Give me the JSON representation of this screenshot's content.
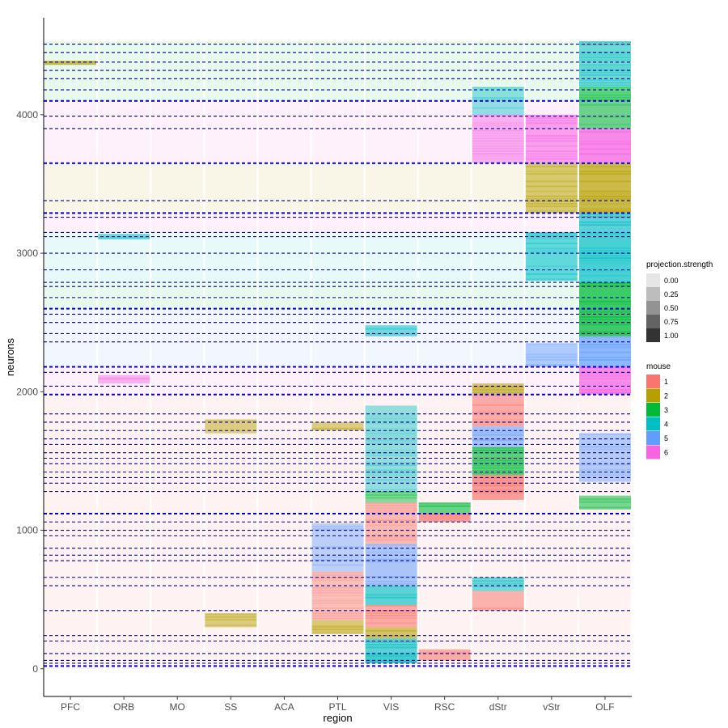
{
  "chart_data": {
    "type": "heatmap",
    "xlabel": "region",
    "ylabel": "neurons",
    "categories": [
      "PFC",
      "ORB",
      "MO",
      "SS",
      "ACA",
      "PTL",
      "VIS",
      "RSC",
      "dStr",
      "vStr",
      "OLF"
    ],
    "ylim": [
      -200,
      4700
    ],
    "y_ticks": [
      0,
      1000,
      2000,
      3000,
      4000
    ],
    "grid": false,
    "legend_position": "right",
    "legends": {
      "projection_strength": {
        "title": "projection.strength",
        "values": [
          "0.00",
          "0.25",
          "0.50",
          "0.75",
          "1.00"
        ],
        "colors": [
          "#e6e6e6",
          "#bdbdbd",
          "#939393",
          "#636363",
          "#333333"
        ]
      },
      "mouse": {
        "title": "mouse",
        "values": [
          "1",
          "2",
          "3",
          "4",
          "5",
          "6"
        ],
        "colors": [
          "#F8766D",
          "#B79F00",
          "#00BA38",
          "#00BFC4",
          "#619CFF",
          "#F564E3"
        ]
      }
    },
    "mouse_boundaries": [
      {
        "y_min": 0,
        "y_max": 1120,
        "mouse": "1"
      },
      {
        "y_min": 1120,
        "y_max": 1980,
        "mouse": "1"
      },
      {
        "y_min": 1980,
        "y_max": 2180,
        "mouse": "6"
      },
      {
        "y_min": 2180,
        "y_max": 2600,
        "mouse": "5"
      },
      {
        "y_min": 2600,
        "y_max": 2790,
        "mouse": "3"
      },
      {
        "y_min": 2790,
        "y_max": 3150,
        "mouse": "4"
      },
      {
        "y_min": 3150,
        "y_max": 3290,
        "mouse": "6"
      },
      {
        "y_min": 3290,
        "y_max": 3650,
        "mouse": "2"
      },
      {
        "y_min": 3650,
        "y_max": 4100,
        "mouse": "6"
      },
      {
        "y_min": 4100,
        "y_max": 4530,
        "mouse": "3"
      }
    ],
    "cluster_lines": [
      20,
      40,
      60,
      110,
      200,
      240,
      420,
      600,
      660,
      780,
      820,
      870,
      960,
      1000,
      1060,
      1120,
      1280,
      1340,
      1380,
      1420,
      1480,
      1520,
      1560,
      1620,
      1660,
      1720,
      1780,
      1840,
      1980,
      2040,
      2140,
      2180,
      2360,
      2420,
      2500,
      2560,
      2600,
      2680,
      2760,
      2790,
      2880,
      3000,
      3120,
      3150,
      3260,
      3290,
      3380,
      3650,
      3900,
      3990,
      4100,
      4180,
      4260,
      4320,
      4380,
      4450,
      4510
    ],
    "heavy_cluster_lines": [
      20,
      1120,
      1980,
      2180,
      2600,
      3290,
      3650,
      4100
    ],
    "blocks": [
      {
        "region": "VIS",
        "y": [
          40,
          120
        ],
        "mouse": "4",
        "strength": 0.9
      },
      {
        "region": "VIS",
        "y": [
          120,
          220
        ],
        "mouse": "4",
        "strength": 0.7
      },
      {
        "region": "VIS",
        "y": [
          220,
          300
        ],
        "mouse": "2",
        "strength": 0.6
      },
      {
        "region": "VIS",
        "y": [
          300,
          460
        ],
        "mouse": "1",
        "strength": 0.6
      },
      {
        "region": "VIS",
        "y": [
          460,
          600
        ],
        "mouse": "4",
        "strength": 0.7
      },
      {
        "region": "VIS",
        "y": [
          600,
          900
        ],
        "mouse": "5",
        "strength": 0.5
      },
      {
        "region": "VIS",
        "y": [
          900,
          1200
        ],
        "mouse": "1",
        "strength": 0.4
      },
      {
        "region": "VIS",
        "y": [
          1200,
          1280
        ],
        "mouse": "3",
        "strength": 0.4
      },
      {
        "region": "VIS",
        "y": [
          1280,
          1900
        ],
        "mouse": "4",
        "strength": 0.3
      },
      {
        "region": "VIS",
        "y": [
          2400,
          2480
        ],
        "mouse": "4",
        "strength": 0.5
      },
      {
        "region": "PTL",
        "y": [
          250,
          350
        ],
        "mouse": "2",
        "strength": 0.5
      },
      {
        "region": "PTL",
        "y": [
          350,
          700
        ],
        "mouse": "1",
        "strength": 0.3
      },
      {
        "region": "PTL",
        "y": [
          700,
          1050
        ],
        "mouse": "5",
        "strength": 0.3
      },
      {
        "region": "PTL",
        "y": [
          1720,
          1780
        ],
        "mouse": "2",
        "strength": 0.4
      },
      {
        "region": "RSC",
        "y": [
          60,
          140
        ],
        "mouse": "1",
        "strength": 0.6
      },
      {
        "region": "RSC",
        "y": [
          1060,
          1120
        ],
        "mouse": "1",
        "strength": 0.9
      },
      {
        "region": "RSC",
        "y": [
          1120,
          1200
        ],
        "mouse": "3",
        "strength": 0.6
      },
      {
        "region": "dStr",
        "y": [
          420,
          560
        ],
        "mouse": "1",
        "strength": 0.5
      },
      {
        "region": "dStr",
        "y": [
          560,
          660
        ],
        "mouse": "4",
        "strength": 0.5
      },
      {
        "region": "dStr",
        "y": [
          1220,
          1400
        ],
        "mouse": "1",
        "strength": 0.8
      },
      {
        "region": "dStr",
        "y": [
          1400,
          1600
        ],
        "mouse": "3",
        "strength": 0.7
      },
      {
        "region": "dStr",
        "y": [
          1600,
          1750
        ],
        "mouse": "5",
        "strength": 0.6
      },
      {
        "region": "dStr",
        "y": [
          1750,
          1980
        ],
        "mouse": "1",
        "strength": 0.6
      },
      {
        "region": "dStr",
        "y": [
          1980,
          2060
        ],
        "mouse": "2",
        "strength": 0.6
      },
      {
        "region": "dStr",
        "y": [
          3650,
          4000
        ],
        "mouse": "6",
        "strength": 0.4
      },
      {
        "region": "dStr",
        "y": [
          4000,
          4200
        ],
        "mouse": "4",
        "strength": 0.3
      },
      {
        "region": "vStr",
        "y": [
          2180,
          2350
        ],
        "mouse": "5",
        "strength": 0.4
      },
      {
        "region": "vStr",
        "y": [
          2800,
          3150
        ],
        "mouse": "4",
        "strength": 0.6
      },
      {
        "region": "vStr",
        "y": [
          3290,
          3650
        ],
        "mouse": "2",
        "strength": 0.5
      },
      {
        "region": "vStr",
        "y": [
          3650,
          4000
        ],
        "mouse": "6",
        "strength": 0.6
      },
      {
        "region": "OLF",
        "y": [
          1150,
          1250
        ],
        "mouse": "3",
        "strength": 0.5
      },
      {
        "region": "OLF",
        "y": [
          1350,
          1700
        ],
        "mouse": "5",
        "strength": 0.4
      },
      {
        "region": "OLF",
        "y": [
          1980,
          2080
        ],
        "mouse": "6",
        "strength": 0.9
      },
      {
        "region": "OLF",
        "y": [
          2080,
          2180
        ],
        "mouse": "6",
        "strength": 0.8
      },
      {
        "region": "OLF",
        "y": [
          2180,
          2400
        ],
        "mouse": "5",
        "strength": 0.8
      },
      {
        "region": "OLF",
        "y": [
          2400,
          2600
        ],
        "mouse": "3",
        "strength": 0.9
      },
      {
        "region": "OLF",
        "y": [
          2600,
          2790
        ],
        "mouse": "3",
        "strength": 0.9
      },
      {
        "region": "OLF",
        "y": [
          2790,
          3150
        ],
        "mouse": "4",
        "strength": 0.8
      },
      {
        "region": "OLF",
        "y": [
          3150,
          3290
        ],
        "mouse": "4",
        "strength": 0.7
      },
      {
        "region": "OLF",
        "y": [
          3290,
          3650
        ],
        "mouse": "2",
        "strength": 0.8
      },
      {
        "region": "OLF",
        "y": [
          3650,
          3900
        ],
        "mouse": "6",
        "strength": 0.9
      },
      {
        "region": "OLF",
        "y": [
          3900,
          4200
        ],
        "mouse": "3",
        "strength": 0.6
      },
      {
        "region": "OLF",
        "y": [
          4200,
          4530
        ],
        "mouse": "4",
        "strength": 0.5
      },
      {
        "region": "PFC",
        "y": [
          4360,
          4390
        ],
        "mouse": "2",
        "strength": 0.8
      },
      {
        "region": "ORB",
        "y": [
          3100,
          3140
        ],
        "mouse": "4",
        "strength": 0.5
      },
      {
        "region": "ORB",
        "y": [
          2060,
          2120
        ],
        "mouse": "6",
        "strength": 0.4
      },
      {
        "region": "SS",
        "y": [
          300,
          400
        ],
        "mouse": "2",
        "strength": 0.4
      },
      {
        "region": "SS",
        "y": [
          1700,
          1800
        ],
        "mouse": "2",
        "strength": 0.4
      }
    ]
  }
}
